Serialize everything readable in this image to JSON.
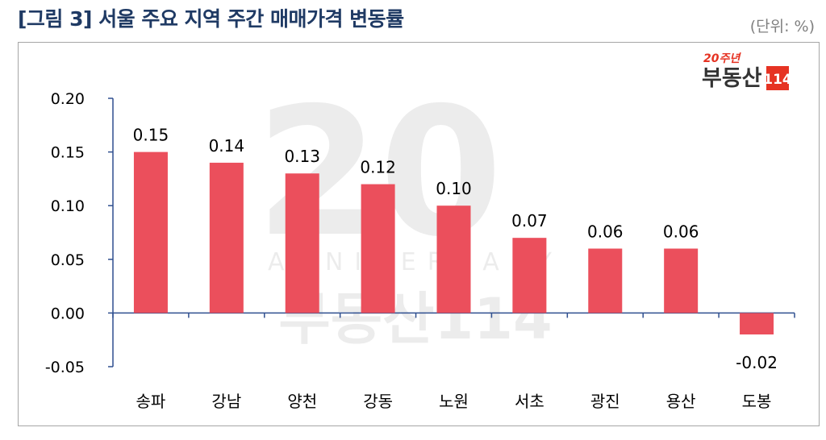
{
  "header": {
    "title": "[그림 3] 서울 주요 지역 주간 매매가격 변동률",
    "unit": "(단위: %)"
  },
  "logo": {
    "text_top": "20주년",
    "text_main": "부동산",
    "text_box": "114",
    "brand_color": "#e63323"
  },
  "watermark": {
    "text": "20th ANNIVERSARY 부동산114"
  },
  "chart_data": {
    "type": "bar",
    "title": "",
    "xlabel": "",
    "ylabel": "",
    "categories": [
      "송파",
      "강남",
      "양천",
      "강동",
      "노원",
      "서초",
      "광진",
      "용산",
      "도봉"
    ],
    "values": [
      0.15,
      0.14,
      0.13,
      0.12,
      0.1,
      0.07,
      0.06,
      0.06,
      -0.02
    ],
    "data_labels": [
      "0.15",
      "0.14",
      "0.13",
      "0.12",
      "0.10",
      "0.07",
      "0.06",
      "0.06",
      "-0.02"
    ],
    "ylim": [
      -0.05,
      0.2
    ],
    "yticks": [
      "0.20",
      "0.15",
      "0.10",
      "0.05",
      "0.00",
      "-0.05"
    ],
    "ytick_values": [
      0.2,
      0.15,
      0.1,
      0.05,
      0.0,
      -0.05
    ],
    "grid": false,
    "legend": "none",
    "colors": {
      "bar": "#eb4f5c",
      "axis": "#2f4f8f",
      "negative_label": "#e63323"
    }
  }
}
